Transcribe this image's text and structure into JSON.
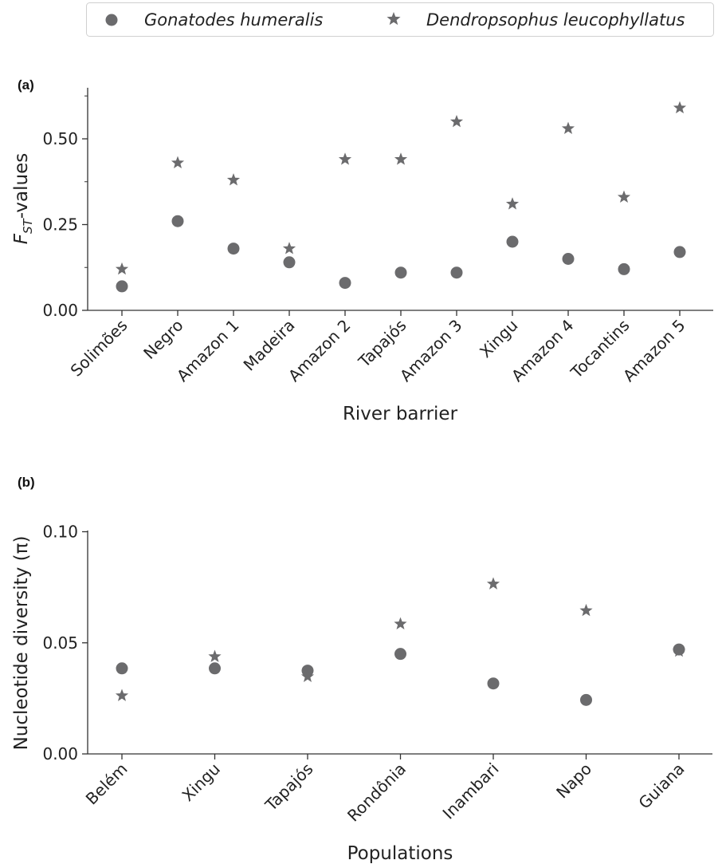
{
  "legend": {
    "items": [
      {
        "label": "Gonatodes humeralis",
        "marker": "circle"
      },
      {
        "label": "Dendropsophus leucophyllatus",
        "marker": "star"
      }
    ]
  },
  "colors": {
    "marker": "#6b6b6d",
    "axis": "#333333"
  },
  "chart_data": [
    {
      "type": "scatter",
      "panel_label": "(a)",
      "xlabel": "River barrier",
      "ylabel_main": "F",
      "ylabel_sub": "ST",
      "ylabel_rest": "-values",
      "categories": [
        "Solimões",
        "Negro",
        "Amazon 1",
        "Madeira",
        "Amazon 2",
        "Tapajós",
        "Amazon 3",
        "Xingu",
        "Amazon 4",
        "Tocantins",
        "Amazon 5"
      ],
      "ylim": [
        0,
        0.65
      ],
      "yticks": [
        0.0,
        0.25,
        0.5
      ],
      "ytick_labels": [
        "0.00",
        "0.25",
        "0.50"
      ],
      "series": [
        {
          "name": "Gonatodes humeralis",
          "marker": "circle",
          "values": [
            0.07,
            0.26,
            0.18,
            0.14,
            0.08,
            0.11,
            0.11,
            0.2,
            0.15,
            0.12,
            0.17
          ]
        },
        {
          "name": "Dendropsophus leucophyllatus",
          "marker": "star",
          "values": [
            0.12,
            0.43,
            0.38,
            0.18,
            0.44,
            0.44,
            0.55,
            0.31,
            0.53,
            0.33,
            0.59
          ]
        }
      ],
      "grid": false
    },
    {
      "type": "scatter",
      "panel_label": "(b)",
      "xlabel": "Populations",
      "ylabel": "Nucleotide diversity (π)",
      "categories": [
        "Belém",
        "Xingu",
        "Tapajós",
        "Rondônia",
        "Inambari",
        "Napo",
        "Guiana"
      ],
      "ylim": [
        0,
        0.1
      ],
      "yticks": [
        0.0,
        0.05,
        0.1
      ],
      "ytick_labels": [
        "0.00",
        "0.05",
        "0.10"
      ],
      "series": [
        {
          "name": "Gonatodes humeralis",
          "marker": "circle",
          "values": [
            0.0385,
            0.0385,
            0.0375,
            0.045,
            0.0317,
            0.0243,
            0.047
          ]
        },
        {
          "name": "Dendropsophus leucophyllatus",
          "marker": "star",
          "values": [
            0.0262,
            0.0438,
            0.0348,
            0.0585,
            0.0765,
            0.0645,
            0.0462
          ]
        }
      ],
      "grid": false
    }
  ]
}
